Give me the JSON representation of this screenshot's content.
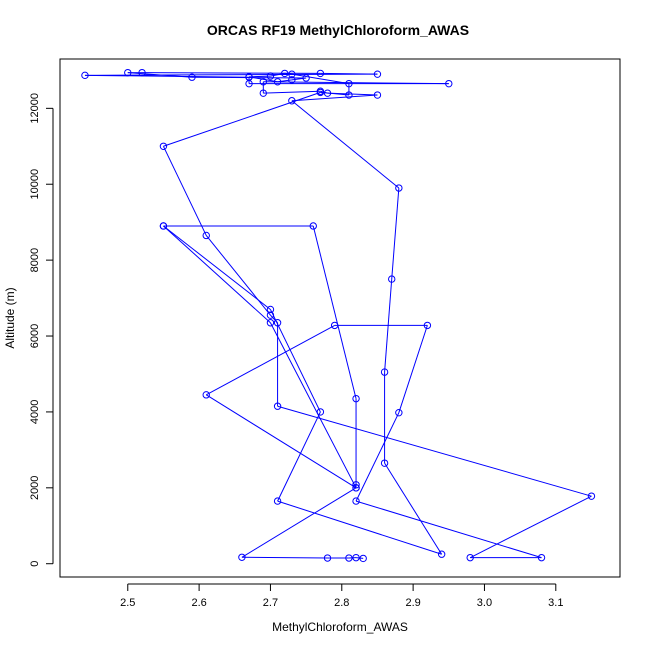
{
  "chart_data": {
    "type": "line",
    "title": "ORCAS RF19 MethylChloroform_AWAS",
    "xlabel": "MethylChloroform_AWAS",
    "ylabel": "Altitude (m)",
    "xlim": [
      2.405,
      3.19
    ],
    "ylim": [
      -350,
      13300
    ],
    "x_ticks": [
      2.5,
      2.6,
      2.7,
      2.8,
      2.9,
      3.0,
      3.1
    ],
    "x_tick_labels": [
      "2.5",
      "2.6",
      "2.7",
      "2.8",
      "2.9",
      "3.0",
      "3.1"
    ],
    "y_ticks": [
      0,
      2000,
      4000,
      6000,
      8000,
      10000,
      12000
    ],
    "y_tick_labels": [
      "0",
      "2000",
      "4000",
      "6000",
      "8000",
      "10000",
      "12000"
    ],
    "series_color": "#0000ff",
    "grid": false,
    "legend": "none",
    "series": [
      {
        "name": "",
        "marker": "open-circle",
        "points": [
          [
            2.83,
            140
          ],
          [
            2.82,
            160
          ],
          [
            2.81,
            150
          ],
          [
            2.78,
            150
          ],
          [
            2.66,
            170
          ],
          [
            2.82,
            2000
          ],
          [
            2.82,
            2080
          ],
          [
            2.82,
            4350
          ],
          [
            2.76,
            8900
          ],
          [
            2.55,
            8900
          ],
          [
            2.7,
            6700
          ],
          [
            2.77,
            4000
          ],
          [
            2.71,
            1650
          ],
          [
            2.94,
            250
          ],
          [
            2.86,
            2650
          ],
          [
            2.86,
            5050
          ],
          [
            2.87,
            7500
          ],
          [
            2.88,
            9900
          ],
          [
            2.73,
            12200
          ],
          [
            2.85,
            12350
          ],
          [
            2.78,
            12400
          ],
          [
            2.77,
            12450
          ],
          [
            2.69,
            12400
          ],
          [
            2.69,
            12700
          ],
          [
            2.95,
            12650
          ],
          [
            2.67,
            12650
          ],
          [
            2.67,
            12820
          ],
          [
            2.44,
            12870
          ],
          [
            2.85,
            12900
          ],
          [
            2.77,
            12920
          ],
          [
            2.52,
            12940
          ],
          [
            2.5,
            12940
          ],
          [
            2.59,
            12820
          ],
          [
            2.75,
            12800
          ],
          [
            2.73,
            12750
          ],
          [
            2.71,
            12700
          ],
          [
            2.67,
            12830
          ],
          [
            2.7,
            12850
          ],
          [
            2.72,
            12920
          ],
          [
            2.73,
            12900
          ],
          [
            2.81,
            12650
          ],
          [
            2.81,
            12350
          ],
          [
            2.77,
            12420
          ],
          [
            2.55,
            11000
          ],
          [
            2.61,
            8650
          ],
          [
            2.7,
            6550
          ],
          [
            2.71,
            6350
          ],
          [
            2.71,
            4150
          ],
          [
            3.15,
            1780
          ],
          [
            2.98,
            160
          ],
          [
            3.08,
            160
          ],
          [
            2.82,
            1650
          ],
          [
            2.88,
            3980
          ],
          [
            2.92,
            6280
          ],
          [
            2.79,
            6280
          ],
          [
            2.61,
            4450
          ],
          [
            2.82,
            2000
          ],
          [
            2.7,
            6350
          ],
          [
            2.55,
            8900
          ]
        ]
      }
    ]
  }
}
